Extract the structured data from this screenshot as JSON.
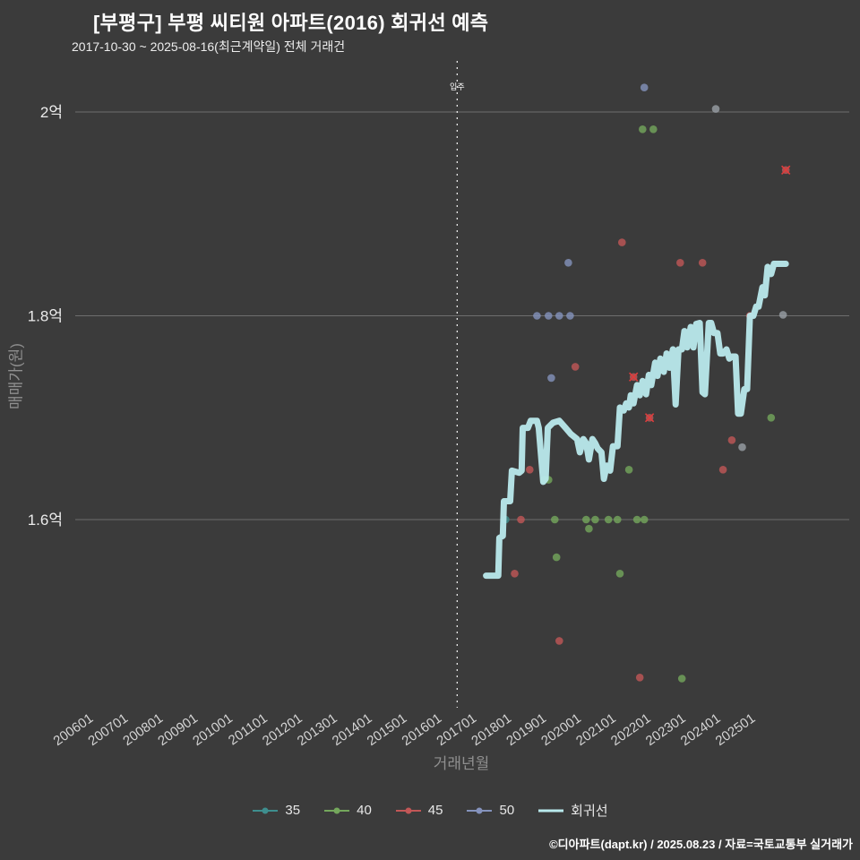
{
  "header": {
    "title": "[부평구] 부평 씨티원 아파트(2016) 회귀선 예측",
    "subtitle": "2017-10-30 ~ 2025-08-16(최근계약일) 전체 거래건"
  },
  "footer": {
    "credit": "©디아파트(dapt.kr) / 2025.08.23 / 자료=국토교통부 실거래가"
  },
  "chart_data": {
    "type": "scatter",
    "title": "[부평구] 부평 씨티원 아파트(2016) 회귀선 예측",
    "xlabel": "거래년월",
    "ylabel": "매매가(원)",
    "grid": true,
    "x_tick_rotation": -35,
    "x_ticks": [
      "200601",
      "200701",
      "200801",
      "200901",
      "201001",
      "201101",
      "201201",
      "201301",
      "201401",
      "201501",
      "201601",
      "201701",
      "201801",
      "201901",
      "202001",
      "202101",
      "202201",
      "202301",
      "202401",
      "202501"
    ],
    "y_ticks": [
      {
        "value": 2.0,
        "label": "2억"
      },
      {
        "value": 1.8,
        "label": "1.8억"
      },
      {
        "value": 1.6,
        "label": "1.6억"
      }
    ],
    "x_range_years": [
      2005.5,
      2026.5
    ],
    "y_range_eok": [
      1.42,
      2.05
    ],
    "vline": {
      "x": 2016.42,
      "label": "입주"
    },
    "legend": [
      "35",
      "40",
      "45",
      "50",
      "회귀선"
    ],
    "legend_position": "bottom",
    "colors": {
      "35": "#3e8e8e",
      "40": "#74a75c",
      "45": "#c25757",
      "50": "#8593bd",
      "회귀선": "#b9e9ec",
      "faded": "#9aa0a6",
      "cancel_x": "#e03c3c"
    },
    "series": [
      {
        "name": "35",
        "points": [
          [
            2017.81,
            1.6
          ]
        ]
      },
      {
        "name": "40",
        "points": [
          [
            2021.74,
            1.983
          ],
          [
            2022.05,
            1.983
          ],
          [
            2025.43,
            1.7
          ],
          [
            2021.35,
            1.649
          ],
          [
            2018.91,
            1.639
          ],
          [
            2019.04,
            1.639
          ],
          [
            2019.22,
            1.6
          ],
          [
            2020.12,
            1.6
          ],
          [
            2020.38,
            1.6
          ],
          [
            2020.76,
            1.6
          ],
          [
            2021.02,
            1.6
          ],
          [
            2021.58,
            1.6
          ],
          [
            2021.79,
            1.6
          ],
          [
            2020.2,
            1.591
          ],
          [
            2019.27,
            1.563
          ],
          [
            2021.09,
            1.547
          ],
          [
            2022.87,
            1.444
          ]
        ]
      },
      {
        "name": "45",
        "points": [
          [
            2021.15,
            1.872
          ],
          [
            2022.82,
            1.852
          ],
          [
            2023.46,
            1.852
          ],
          [
            2024.82,
            1.8
          ],
          [
            2019.81,
            1.75
          ],
          [
            2018.5,
            1.649
          ],
          [
            2024.05,
            1.649
          ],
          [
            2024.3,
            1.678
          ],
          [
            2018.25,
            1.6
          ],
          [
            2018.07,
            1.547
          ],
          [
            2019.35,
            1.481
          ],
          [
            2021.66,
            1.445
          ]
        ],
        "cancelled": [
          [
            2025.85,
            1.943
          ],
          [
            2021.48,
            1.74
          ],
          [
            2021.94,
            1.7
          ]
        ]
      },
      {
        "name": "50",
        "points": [
          [
            2021.79,
            2.024
          ],
          [
            2019.61,
            1.852
          ],
          [
            2018.71,
            1.8
          ],
          [
            2019.04,
            1.8
          ],
          [
            2019.35,
            1.8
          ],
          [
            2019.66,
            1.8
          ],
          [
            2019.12,
            1.739
          ]
        ],
        "faded_points": [
          [
            2023.84,
            2.003
          ],
          [
            2025.77,
            1.801
          ],
          [
            2024.6,
            1.671
          ]
        ]
      }
    ],
    "regression": {
      "name": "회귀선",
      "points": [
        [
          2017.25,
          1.545
        ],
        [
          2017.6,
          1.545
        ],
        [
          2017.63,
          1.582
        ],
        [
          2017.73,
          1.584
        ],
        [
          2017.76,
          1.618
        ],
        [
          2017.94,
          1.618
        ],
        [
          2017.99,
          1.648
        ],
        [
          2018.2,
          1.646
        ],
        [
          2018.27,
          1.648
        ],
        [
          2018.3,
          1.69
        ],
        [
          2018.45,
          1.69
        ],
        [
          2018.53,
          1.697
        ],
        [
          2018.71,
          1.697
        ],
        [
          2018.76,
          1.69
        ],
        [
          2018.89,
          1.637
        ],
        [
          2018.96,
          1.64
        ],
        [
          2019.02,
          1.69
        ],
        [
          2019.17,
          1.695
        ],
        [
          2019.35,
          1.697
        ],
        [
          2019.53,
          1.69
        ],
        [
          2019.68,
          1.684
        ],
        [
          2019.86,
          1.679
        ],
        [
          2019.94,
          1.666
        ],
        [
          2020.04,
          1.679
        ],
        [
          2020.12,
          1.675
        ],
        [
          2020.2,
          1.659
        ],
        [
          2020.3,
          1.679
        ],
        [
          2020.38,
          1.675
        ],
        [
          2020.45,
          1.67
        ],
        [
          2020.56,
          1.666
        ],
        [
          2020.63,
          1.64
        ],
        [
          2020.71,
          1.653
        ],
        [
          2020.81,
          1.648
        ],
        [
          2020.89,
          1.672
        ],
        [
          2021.02,
          1.672
        ],
        [
          2021.09,
          1.71
        ],
        [
          2021.2,
          1.707
        ],
        [
          2021.27,
          1.714
        ],
        [
          2021.35,
          1.71
        ],
        [
          2021.4,
          1.722
        ],
        [
          2021.48,
          1.714
        ],
        [
          2021.58,
          1.732
        ],
        [
          2021.66,
          1.722
        ],
        [
          2021.74,
          1.736
        ],
        [
          2021.84,
          1.723
        ],
        [
          2021.92,
          1.742
        ],
        [
          2021.99,
          1.732
        ],
        [
          2022.1,
          1.754
        ],
        [
          2022.17,
          1.741
        ],
        [
          2022.25,
          1.758
        ],
        [
          2022.35,
          1.745
        ],
        [
          2022.43,
          1.763
        ],
        [
          2022.51,
          1.749
        ],
        [
          2022.61,
          1.767
        ],
        [
          2022.69,
          1.713
        ],
        [
          2022.77,
          1.767
        ],
        [
          2022.87,
          1.767
        ],
        [
          2022.94,
          1.785
        ],
        [
          2023.02,
          1.769
        ],
        [
          2023.12,
          1.789
        ],
        [
          2023.2,
          1.769
        ],
        [
          2023.28,
          1.792
        ],
        [
          2023.38,
          1.793
        ],
        [
          2023.46,
          1.725
        ],
        [
          2023.53,
          1.723
        ],
        [
          2023.64,
          1.793
        ],
        [
          2023.71,
          1.793
        ],
        [
          2023.79,
          1.783
        ],
        [
          2023.89,
          1.783
        ],
        [
          2023.97,
          1.763
        ],
        [
          2024.05,
          1.763
        ],
        [
          2024.15,
          1.767
        ],
        [
          2024.23,
          1.758
        ],
        [
          2024.3,
          1.76
        ],
        [
          2024.41,
          1.76
        ],
        [
          2024.48,
          1.704
        ],
        [
          2024.56,
          1.704
        ],
        [
          2024.66,
          1.728
        ],
        [
          2024.74,
          1.728
        ],
        [
          2024.82,
          1.8
        ],
        [
          2024.92,
          1.8
        ],
        [
          2025.0,
          1.809
        ],
        [
          2025.07,
          1.809
        ],
        [
          2025.18,
          1.828
        ],
        [
          2025.25,
          1.82
        ],
        [
          2025.33,
          1.848
        ],
        [
          2025.43,
          1.841
        ],
        [
          2025.51,
          1.851
        ],
        [
          2025.59,
          1.851
        ],
        [
          2025.69,
          1.851
        ],
        [
          2025.85,
          1.851
        ]
      ]
    }
  }
}
